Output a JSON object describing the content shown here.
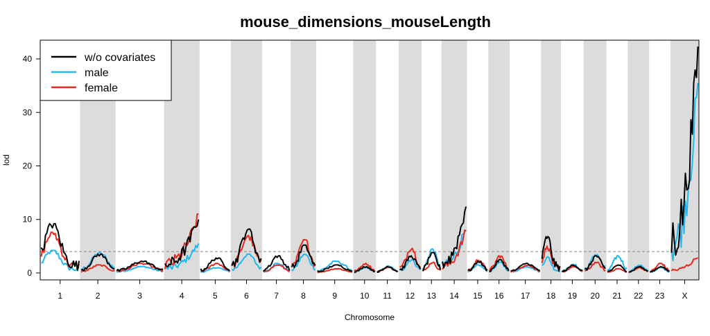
{
  "chart_data": {
    "type": "line",
    "title": "mouse_dimensions_mouseLength",
    "xlabel": "Chromosome",
    "ylabel": "lod",
    "ylim": [
      -1.3,
      43.5
    ],
    "yticks": [
      0,
      10,
      20,
      30,
      40
    ],
    "threshold": 4.0,
    "legend_position": "top-left",
    "colors": {
      "background_band": "#dcdcdc",
      "threshold_line": "#888888",
      "axis": "#000000"
    },
    "chromosomes": [
      {
        "label": "1",
        "shaded": false,
        "peak_black": 9.2,
        "peak_male": 4.2,
        "peak_female": 7.6
      },
      {
        "label": "2",
        "shaded": true,
        "peak_black": 3.5,
        "peak_male": 3.8,
        "peak_female": 1.5
      },
      {
        "label": "3",
        "shaded": false,
        "peak_black": 2.2,
        "peak_male": 1.2,
        "peak_female": 1.8
      },
      {
        "label": "4",
        "shaded": true,
        "peak_black": 10.5,
        "peak_male": 5.5,
        "peak_female": 11.0
      },
      {
        "label": "5",
        "shaded": false,
        "peak_black": 2.8,
        "peak_male": 1.0,
        "peak_female": 1.8
      },
      {
        "label": "6",
        "shaded": true,
        "peak_black": 8.2,
        "peak_male": 3.5,
        "peak_female": 7.0
      },
      {
        "label": "7",
        "shaded": false,
        "peak_black": 3.2,
        "peak_male": 1.8,
        "peak_female": 1.5
      },
      {
        "label": "8",
        "shaded": true,
        "peak_black": 5.2,
        "peak_male": 3.5,
        "peak_female": 6.2
      },
      {
        "label": "9",
        "shaded": false,
        "peak_black": 1.5,
        "peak_male": 2.2,
        "peak_female": 0.8
      },
      {
        "label": "10",
        "shaded": true,
        "peak_black": 1.2,
        "peak_male": 1.0,
        "peak_female": 1.8
      },
      {
        "label": "11",
        "shaded": false,
        "peak_black": 1.2,
        "peak_male": 1.3,
        "peak_female": 1.1
      },
      {
        "label": "12",
        "shaded": true,
        "peak_black": 3.2,
        "peak_male": 2.5,
        "peak_female": 4.8
      },
      {
        "label": "13",
        "shaded": false,
        "peak_black": 3.8,
        "peak_male": 4.5,
        "peak_female": 2.0
      },
      {
        "label": "14",
        "shaded": true,
        "peak_black": 13.0,
        "peak_male": 9.0,
        "peak_female": 8.0
      },
      {
        "label": "15",
        "shaded": false,
        "peak_black": 2.2,
        "peak_male": 1.5,
        "peak_female": 2.5
      },
      {
        "label": "16",
        "shaded": true,
        "peak_black": 2.5,
        "peak_male": 2.0,
        "peak_female": 3.2
      },
      {
        "label": "17",
        "shaded": false,
        "peak_black": 1.8,
        "peak_male": 1.2,
        "peak_female": 1.5
      },
      {
        "label": "18",
        "shaded": true,
        "peak_black": 6.8,
        "peak_male": 3.0,
        "peak_female": 5.0
      },
      {
        "label": "19",
        "shaded": false,
        "peak_black": 1.5,
        "peak_male": 1.6,
        "peak_female": 1.2
      },
      {
        "label": "20",
        "shaded": true,
        "peak_black": 3.2,
        "peak_male": 3.5,
        "peak_female": 2.0
      },
      {
        "label": "21",
        "shaded": false,
        "peak_black": 1.5,
        "peak_male": 3.2,
        "peak_female": 0.8
      },
      {
        "label": "22",
        "shaded": true,
        "peak_black": 1.2,
        "peak_male": 1.5,
        "peak_female": 1.0
      },
      {
        "label": "23",
        "shaded": false,
        "peak_black": 1.2,
        "peak_male": 1.0,
        "peak_female": 1.8
      },
      {
        "label": "X",
        "shaded": true,
        "peak_black": 42.3,
        "peak_male": 35.5,
        "peak_female": 3.2
      }
    ],
    "series": [
      {
        "name": "w/o covariates",
        "color": "#000000"
      },
      {
        "name": "male",
        "color": "#1fb8f0"
      },
      {
        "name": "female",
        "color": "#e8281e"
      }
    ]
  }
}
